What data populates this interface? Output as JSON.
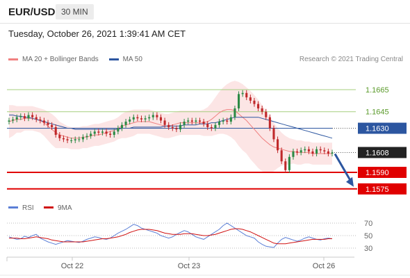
{
  "header": {
    "pair": "EUR/USD",
    "timeframe": "30 MIN"
  },
  "timestamp": "Tuesday, October 26, 2021 1:39:41 AM CET",
  "legend": {
    "ma20": "MA 20 + Bollinger Bands",
    "ma50": "MA 50",
    "credit": "Research © 2021 Trading Central"
  },
  "rsi_legend": {
    "rsi": "RSI",
    "ma": "9MA"
  },
  "colors": {
    "ma20": "#f08080",
    "ma50": "#2c56a0",
    "rsi": "#5b7fd6",
    "rsi_ma": "#d01010",
    "up": "#2c8a45",
    "down": "#c0282a",
    "band": "#fbe0e0"
  },
  "chart_data": [
    {
      "type": "candlestick",
      "x_tick_labels": [
        "Oct 22",
        "Oct 23",
        "Oct 26"
      ],
      "ylim": [
        1.157,
        1.168
      ],
      "levels": [
        {
          "label": "1.1665",
          "value": 1.1665,
          "style": "green-line"
        },
        {
          "label": "1.1645",
          "value": 1.1645,
          "style": "green-line"
        },
        {
          "label": "1.1630",
          "value": 1.163,
          "style": "blue-box"
        },
        {
          "label": "1.1608",
          "value": 1.1608,
          "style": "current-black-box"
        },
        {
          "label": "1.1590",
          "value": 1.159,
          "style": "red-box"
        },
        {
          "label": "1.1575",
          "value": 1.1575,
          "style": "red-box"
        }
      ],
      "close": [
        1.1637,
        1.1638,
        1.164,
        1.1641,
        1.1639,
        1.1642,
        1.164,
        1.1638,
        1.1637,
        1.1635,
        1.1633,
        1.1631,
        1.1624,
        1.1621,
        1.162,
        1.1619,
        1.1619,
        1.162,
        1.162,
        1.1622,
        1.1623,
        1.1625,
        1.1627,
        1.1626,
        1.1627,
        1.1625,
        1.1624,
        1.1627,
        1.163,
        1.1633,
        1.1636,
        1.1638,
        1.164,
        1.1639,
        1.1638,
        1.1639,
        1.164,
        1.1642,
        1.164,
        1.1637,
        1.1633,
        1.1631,
        1.163,
        1.1629,
        1.1633,
        1.1636,
        1.1637,
        1.1636,
        1.1637,
        1.1636,
        1.1634,
        1.1631,
        1.163,
        1.1633,
        1.1636,
        1.1637,
        1.1636,
        1.164,
        1.1648,
        1.1661,
        1.1662,
        1.1658,
        1.1655,
        1.1652,
        1.1648,
        1.1645,
        1.164,
        1.163,
        1.162,
        1.161,
        1.16,
        1.1592,
        1.1604,
        1.1609,
        1.1608,
        1.161,
        1.1611,
        1.1609,
        1.1607,
        1.1611,
        1.161,
        1.1609,
        1.1607,
        1.1608
      ],
      "ma20": [
        1.1636,
        1.1637,
        1.1638,
        1.1638,
        1.1639,
        1.1639,
        1.1639,
        1.1638,
        1.1637,
        1.1635,
        1.1632,
        1.1629,
        1.1626,
        1.1624,
        1.1623,
        1.1622,
        1.1621,
        1.1621,
        1.1621,
        1.1622,
        1.1622,
        1.1623,
        1.1624,
        1.1624,
        1.1625,
        1.1626,
        1.1627,
        1.1628,
        1.163,
        1.1632,
        1.1633,
        1.1634,
        1.1635,
        1.1636,
        1.1636,
        1.1636,
        1.1636,
        1.1635,
        1.1634,
        1.1633,
        1.1632,
        1.1632,
        1.1633,
        1.1634,
        1.1635,
        1.1635,
        1.1635,
        1.1635,
        1.1635,
        1.1635,
        1.1635,
        1.1636,
        1.1638,
        1.1641,
        1.1644,
        1.1646,
        1.1647,
        1.1647,
        1.1646,
        1.1643,
        1.164,
        1.1637,
        1.1633,
        1.1629,
        1.1625,
        1.1621,
        1.1618,
        1.1615,
        1.1613,
        1.1612,
        1.1611,
        1.161,
        1.1609,
        1.1609,
        1.1608,
        1.1608,
        1.1608,
        1.1608,
        1.1607,
        1.1607,
        1.1607,
        1.1607,
        1.1607,
        1.1607
      ],
      "ma50": [
        1.1642,
        1.1642,
        1.1641,
        1.1641,
        1.164,
        1.164,
        1.1639,
        1.1638,
        1.1637,
        1.1636,
        1.1635,
        1.1634,
        1.1633,
        1.1632,
        1.1631,
        1.163,
        1.163,
        1.1629,
        1.1629,
        1.1629,
        1.1629,
        1.1629,
        1.1629,
        1.1629,
        1.1629,
        1.1629,
        1.1629,
        1.1629,
        1.1629,
        1.163,
        1.163,
        1.163,
        1.1631,
        1.1631,
        1.1631,
        1.1631,
        1.1631,
        1.1631,
        1.1631,
        1.1631,
        1.1632,
        1.1632,
        1.1632,
        1.1632,
        1.1632,
        1.1633,
        1.1633,
        1.1633,
        1.1633,
        1.1634,
        1.1634,
        1.1634,
        1.1635,
        1.1635,
        1.1636,
        1.1637,
        1.1638,
        1.1639,
        1.164,
        1.164,
        1.164,
        1.164,
        1.164,
        1.164,
        1.164,
        1.1639,
        1.1638,
        1.1637,
        1.1636,
        1.1635,
        1.1634,
        1.1633,
        1.1632,
        1.1631,
        1.163,
        1.1629,
        1.1628,
        1.1627,
        1.1626,
        1.1625,
        1.1624,
        1.1623,
        1.1622,
        1.1621
      ],
      "bollinger_upper": [
        1.1651,
        1.1651,
        1.165,
        1.165,
        1.165,
        1.165,
        1.165,
        1.1649,
        1.1648,
        1.1647,
        1.1645,
        1.1643,
        1.164,
        1.1636,
        1.1634,
        1.1632,
        1.1631,
        1.1631,
        1.1631,
        1.1632,
        1.1632,
        1.1633,
        1.1634,
        1.1634,
        1.1635,
        1.1636,
        1.1637,
        1.1638,
        1.164,
        1.1643,
        1.1645,
        1.1646,
        1.1647,
        1.1647,
        1.1647,
        1.1647,
        1.1647,
        1.1646,
        1.1645,
        1.1644,
        1.1643,
        1.1643,
        1.1644,
        1.1645,
        1.1646,
        1.1646,
        1.1646,
        1.1646,
        1.1646,
        1.1646,
        1.1647,
        1.1649,
        1.1653,
        1.1658,
        1.1663,
        1.1667,
        1.167,
        1.1672,
        1.1673,
        1.1672,
        1.167,
        1.1667,
        1.1664,
        1.166,
        1.1656,
        1.1651,
        1.1646,
        1.164,
        1.1635,
        1.163,
        1.1626,
        1.1623,
        1.1621,
        1.162,
        1.1619,
        1.1619,
        1.1618,
        1.1618,
        1.1617,
        1.1617,
        1.1617,
        1.1617,
        1.1617,
        1.1617
      ],
      "bollinger_lower": [
        1.1621,
        1.1623,
        1.1626,
        1.1626,
        1.1628,
        1.1628,
        1.1628,
        1.1627,
        1.1626,
        1.1623,
        1.1619,
        1.1615,
        1.1612,
        1.1612,
        1.1612,
        1.1612,
        1.1611,
        1.1611,
        1.1611,
        1.1612,
        1.1612,
        1.1613,
        1.1614,
        1.1614,
        1.1615,
        1.1616,
        1.1617,
        1.1618,
        1.162,
        1.1621,
        1.1621,
        1.1622,
        1.1623,
        1.1625,
        1.1625,
        1.1625,
        1.1625,
        1.1624,
        1.1623,
        1.1622,
        1.1621,
        1.1621,
        1.1622,
        1.1623,
        1.1624,
        1.1624,
        1.1624,
        1.1624,
        1.1624,
        1.1624,
        1.1623,
        1.1623,
        1.1623,
        1.1624,
        1.1625,
        1.1625,
        1.1624,
        1.1622,
        1.1619,
        1.1614,
        1.161,
        1.1607,
        1.1602,
        1.1598,
        1.1594,
        1.1591,
        1.159,
        1.159,
        1.1591,
        1.1594,
        1.1596,
        1.1597,
        1.1597,
        1.1598,
        1.1597,
        1.1597,
        1.1598,
        1.1598,
        1.1597,
        1.1597,
        1.1597,
        1.1597,
        1.1597,
        1.1597
      ],
      "forecast_arrow": {
        "from": 1.1608,
        "to": 1.1575
      }
    },
    {
      "type": "line",
      "title": "RSI",
      "y_tick_labels": [
        "70",
        "50",
        "30"
      ],
      "ylim": [
        20,
        80
      ],
      "series": [
        {
          "name": "RSI",
          "values": [
            48,
            46,
            44,
            45,
            49,
            47,
            50,
            52,
            46,
            43,
            40,
            38,
            36,
            38,
            40,
            42,
            41,
            40,
            39,
            41,
            44,
            46,
            48,
            47,
            45,
            44,
            46,
            50,
            54,
            57,
            60,
            64,
            68,
            66,
            62,
            60,
            58,
            56,
            54,
            50,
            48,
            46,
            48,
            52,
            55,
            58,
            56,
            52,
            48,
            46,
            44,
            48,
            52,
            56,
            60,
            66,
            70,
            66,
            62,
            58,
            54,
            50,
            48,
            46,
            40,
            36,
            33,
            32,
            31,
            38,
            44,
            47,
            45,
            43,
            41,
            43,
            46,
            48,
            46,
            44,
            43,
            45,
            46,
            45
          ]
        },
        {
          "name": "9MA",
          "values": [
            46,
            46,
            46,
            45,
            45,
            46,
            47,
            48,
            47,
            46,
            45,
            43,
            42,
            41,
            40,
            40,
            40,
            40,
            40,
            40,
            41,
            42,
            43,
            44,
            45,
            45,
            46,
            47,
            48,
            50,
            52,
            55,
            57,
            59,
            60,
            60,
            60,
            59,
            58,
            56,
            54,
            53,
            52,
            52,
            52,
            53,
            53,
            53,
            52,
            51,
            50,
            50,
            51,
            52,
            54,
            56,
            58,
            60,
            61,
            61,
            60,
            58,
            56,
            53,
            50,
            47,
            44,
            41,
            38,
            37,
            37,
            37,
            38,
            39,
            40,
            41,
            42,
            43,
            44,
            44,
            44,
            44,
            45,
            45
          ]
        }
      ]
    }
  ]
}
